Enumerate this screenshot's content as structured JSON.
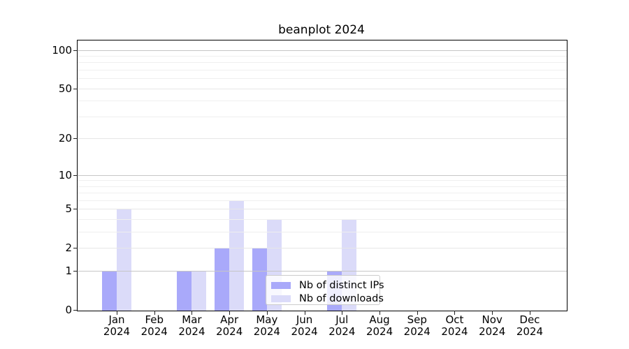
{
  "chart_data": {
    "type": "bar",
    "title": "beanplot 2024",
    "categories": [
      "Jan",
      "Feb",
      "Mar",
      "Apr",
      "May",
      "Jun",
      "Jul",
      "Aug",
      "Sep",
      "Oct",
      "Nov",
      "Dec"
    ],
    "year_label": "2024",
    "series": [
      {
        "name": "Nb of distinct IPs",
        "color": "#a9a9fa",
        "values": [
          1,
          0,
          1,
          2,
          2,
          0,
          1,
          0,
          0,
          0,
          0,
          0
        ]
      },
      {
        "name": "Nb of downloads",
        "color": "#dbdbf9",
        "values": [
          5,
          0,
          1,
          6,
          4,
          0,
          4,
          0,
          0,
          0,
          0,
          0
        ]
      }
    ],
    "xlabel": "",
    "ylabel": "",
    "yscale": "log1p",
    "ylim": [
      0,
      120
    ],
    "yticks": [
      0,
      1,
      2,
      5,
      10,
      20,
      50,
      100
    ],
    "yticks_minor": [
      3,
      4,
      6,
      7,
      8,
      9,
      30,
      40,
      60,
      70,
      80,
      90
    ],
    "grid": "on",
    "legend_position": "lower center, inside plot"
  }
}
